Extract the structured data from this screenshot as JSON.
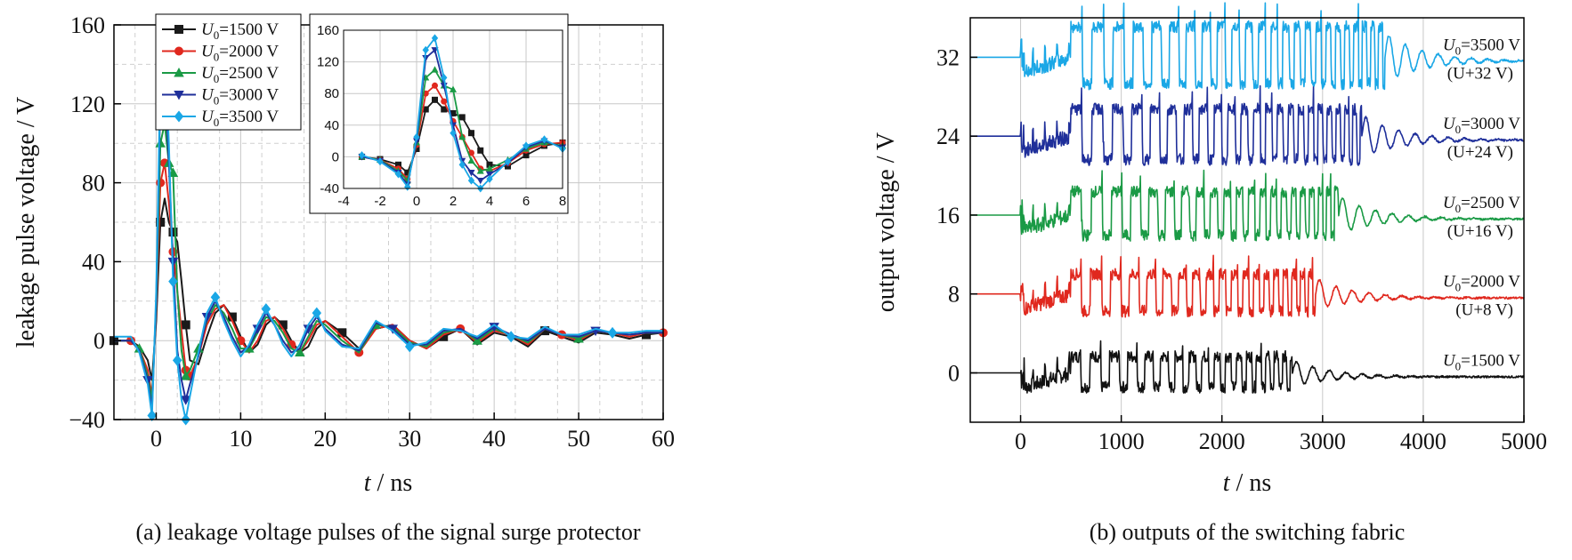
{
  "chart_data": [
    {
      "type": "line",
      "caption": "(a) leakage voltage pulses of the signal surge protector",
      "xlabel_italic": "t",
      "xlabel_rest": " / ns",
      "ylabel": "leakage pulse voltage / V",
      "xlim": [
        -5,
        60
      ],
      "ylim": [
        -40,
        160
      ],
      "xticks": [
        0,
        10,
        20,
        30,
        40,
        50,
        60
      ],
      "yticks": [
        -40,
        0,
        40,
        80,
        120,
        160
      ],
      "grid": true,
      "legend_position": "top-left",
      "series": [
        {
          "name_italic": "U",
          "name_sub": "0",
          "name_rest": "=1500 V",
          "color": "#1a1a1a",
          "marker": "square",
          "x": [
            -5,
            -3,
            -2,
            -1,
            -0.5,
            0,
            0.5,
            1,
            1.5,
            2,
            2.5,
            3,
            3.5,
            4,
            5,
            6,
            7,
            8,
            9,
            10,
            11,
            12,
            13,
            14,
            15,
            16,
            17,
            18,
            19,
            20,
            22,
            24,
            26,
            28,
            30,
            32,
            34,
            36,
            38,
            40,
            42,
            44,
            46,
            48,
            50,
            52,
            54,
            56,
            58,
            60
          ],
          "y": [
            0,
            0,
            -3,
            -10,
            -20,
            10,
            60,
            72,
            60,
            55,
            50,
            30,
            8,
            -10,
            -12,
            2,
            14,
            18,
            12,
            2,
            -6,
            -2,
            8,
            12,
            8,
            0,
            -6,
            -3,
            6,
            10,
            4,
            -4,
            6,
            8,
            0,
            -4,
            2,
            6,
            -2,
            4,
            2,
            -3,
            5,
            2,
            -1,
            4,
            3,
            1,
            3,
            4
          ]
        },
        {
          "name_italic": "U",
          "name_sub": "0",
          "name_rest": "=2000 V",
          "color": "#e0281e",
          "marker": "circle",
          "x": [
            -5,
            -3,
            -2,
            -1,
            -0.5,
            0,
            0.5,
            1,
            1.5,
            2,
            2.5,
            3,
            3.5,
            4,
            5,
            6,
            7,
            8,
            9,
            10,
            11,
            12,
            13,
            14,
            15,
            16,
            17,
            18,
            19,
            20,
            22,
            24,
            26,
            28,
            30,
            32,
            34,
            36,
            38,
            40,
            42,
            44,
            46,
            48,
            50,
            52,
            54,
            56,
            58,
            60
          ],
          "y": [
            0,
            0,
            -4,
            -15,
            -28,
            15,
            80,
            90,
            70,
            45,
            25,
            5,
            -15,
            -18,
            -8,
            8,
            16,
            18,
            10,
            0,
            -6,
            0,
            10,
            12,
            6,
            -2,
            -6,
            0,
            8,
            10,
            2,
            -6,
            6,
            8,
            0,
            -4,
            3,
            6,
            -1,
            5,
            3,
            -2,
            6,
            3,
            0,
            5,
            4,
            2,
            4,
            4
          ]
        },
        {
          "name_italic": "U",
          "name_sub": "0",
          "name_rest": "=2500 V",
          "color": "#1a9a45",
          "marker": "triangle-up",
          "x": [
            -5,
            -3,
            -2,
            -1,
            -0.5,
            0,
            0.5,
            1,
            1.5,
            2,
            2.5,
            3,
            3.5,
            4,
            5,
            6,
            7,
            8,
            9,
            10,
            11,
            12,
            13,
            14,
            15,
            16,
            17,
            18,
            19,
            20,
            22,
            24,
            26,
            28,
            30,
            32,
            34,
            36,
            38,
            40,
            42,
            44,
            46,
            48,
            50,
            52,
            54,
            56,
            58,
            60
          ],
          "y": [
            0,
            0,
            -4,
            -18,
            -30,
            18,
            100,
            110,
            90,
            85,
            25,
            -5,
            -18,
            -15,
            -4,
            10,
            18,
            14,
            6,
            -4,
            -4,
            4,
            12,
            10,
            4,
            -4,
            -6,
            2,
            10,
            8,
            0,
            -6,
            8,
            7,
            -1,
            -3,
            4,
            6,
            0,
            6,
            3,
            -1,
            6,
            3,
            1,
            5,
            4,
            3,
            4,
            4
          ]
        },
        {
          "name_italic": "U",
          "name_sub": "0",
          "name_rest": "=3000 V",
          "color": "#1f2f9a",
          "marker": "triangle-down",
          "x": [
            -5,
            -3,
            -2,
            -1,
            -0.5,
            0,
            0.5,
            1,
            1.5,
            2,
            2.5,
            3,
            3.5,
            4,
            5,
            6,
            7,
            8,
            9,
            10,
            11,
            12,
            13,
            14,
            15,
            16,
            17,
            18,
            19,
            20,
            22,
            24,
            26,
            28,
            30,
            32,
            34,
            36,
            38,
            40,
            42,
            44,
            46,
            48,
            50,
            52,
            54,
            56,
            58,
            60
          ],
          "y": [
            0,
            0,
            -5,
            -20,
            -35,
            20,
            125,
            135,
            90,
            40,
            -5,
            -20,
            -30,
            -22,
            -8,
            12,
            20,
            12,
            2,
            -6,
            -3,
            6,
            14,
            8,
            0,
            -6,
            -4,
            6,
            12,
            6,
            -2,
            -5,
            9,
            6,
            -2,
            -2,
            5,
            6,
            1,
            7,
            3,
            0,
            6,
            3,
            2,
            5,
            4,
            3,
            4,
            4
          ]
        },
        {
          "name_italic": "U",
          "name_sub": "0",
          "name_rest": "=3500 V",
          "color": "#1aa7e6",
          "marker": "diamond",
          "x": [
            -5,
            -3,
            -2,
            -1,
            -0.5,
            0,
            0.5,
            1,
            1.5,
            2,
            2.5,
            3,
            3.5,
            4,
            5,
            6,
            7,
            8,
            9,
            10,
            11,
            12,
            13,
            14,
            15,
            16,
            17,
            18,
            19,
            20,
            22,
            24,
            26,
            28,
            30,
            32,
            34,
            36,
            38,
            40,
            42,
            44,
            46,
            48,
            50,
            52,
            54,
            56,
            58,
            60
          ],
          "y": [
            2,
            2,
            -6,
            -22,
            -38,
            25,
            135,
            150,
            100,
            30,
            -10,
            -30,
            -40,
            -28,
            -6,
            14,
            22,
            10,
            0,
            -8,
            -2,
            8,
            16,
            8,
            -2,
            -8,
            -2,
            8,
            14,
            5,
            -3,
            -4,
            10,
            5,
            -3,
            -1,
            6,
            5,
            2,
            8,
            2,
            1,
            7,
            3,
            3,
            6,
            4,
            4,
            5,
            5
          ]
        }
      ],
      "inset": {
        "xlim": [
          -4,
          8
        ],
        "ylim": [
          -40,
          160
        ],
        "xticks": [
          -4,
          -2,
          0,
          2,
          4,
          6,
          8
        ],
        "yticks": [
          -40,
          0,
          40,
          80,
          120,
          160
        ]
      }
    },
    {
      "type": "line",
      "caption": "(b) outputs of the switching fabric",
      "xlabel_italic": "t",
      "xlabel_rest": " / ns",
      "ylabel": "output voltage / V",
      "xlim": [
        -500,
        5000
      ],
      "ylim": [
        -5,
        36
      ],
      "xticks": [
        0,
        1000,
        2000,
        3000,
        4000,
        5000
      ],
      "yticks": [
        0,
        8,
        16,
        24,
        32
      ],
      "grid": true,
      "series": [
        {
          "label_italic": "U",
          "label_sub": "0",
          "label_rest": "=1500 V",
          "offset": 0,
          "color": "#111111",
          "offset_label": ""
        },
        {
          "label_italic": "U",
          "label_sub": "0",
          "label_rest": "=2000 V",
          "offset": 8,
          "color": "#e0281e",
          "offset_label": "(U+8 V)"
        },
        {
          "label_italic": "U",
          "label_sub": "0",
          "label_rest": "=2500 V",
          "offset": 16,
          "color": "#1a9a45",
          "offset_label": "(U+16 V)"
        },
        {
          "label_italic": "U",
          "label_sub": "0",
          "label_rest": "=3000 V",
          "offset": 24,
          "color": "#1f2f9a",
          "offset_label": "(U+24 V)"
        },
        {
          "label_italic": "U",
          "label_sub": "0",
          "label_rest": "=3500 V",
          "offset": 32,
          "color": "#1aa7e6",
          "offset_label": "(U+32 V)"
        }
      ]
    }
  ]
}
